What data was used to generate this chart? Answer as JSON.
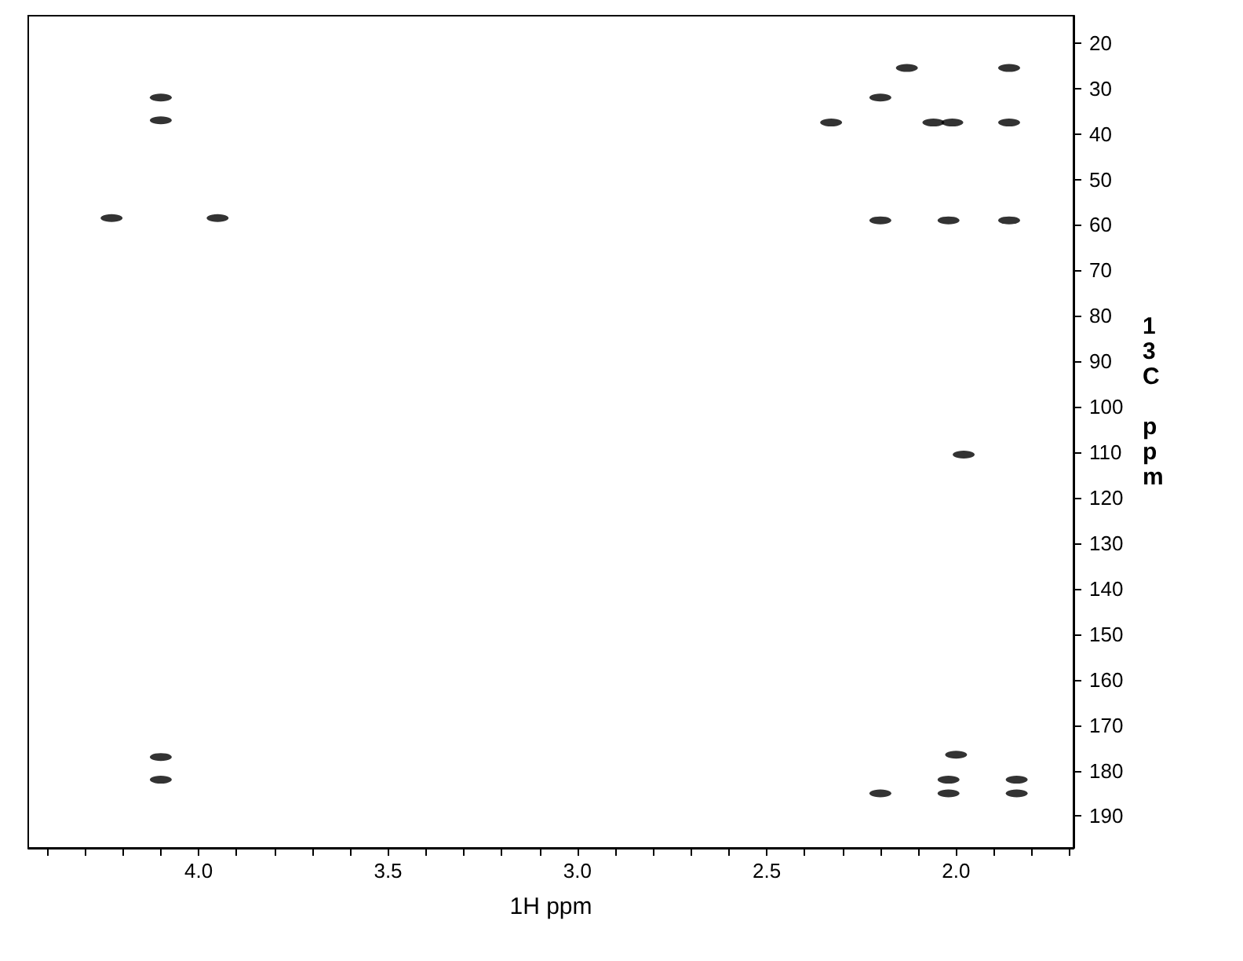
{
  "chart_data": {
    "type": "scatter",
    "xlabel": "1H ppm",
    "ylabel": "13C ppm",
    "series": [
      {
        "color": "#000000",
        "x": [
          4.1,
          4.1,
          4.1,
          4.1,
          4.23,
          3.95,
          2.33,
          2.2,
          2.2,
          2.2,
          2.13,
          2.06,
          2.01,
          2.02,
          1.86,
          1.86,
          1.86,
          1.98,
          2.0,
          2.02,
          2.02,
          1.84,
          1.84
        ],
        "values": [
          32,
          37,
          177,
          182,
          58.5,
          58.5,
          37.5,
          32,
          59,
          185,
          25.5,
          37.5,
          37.5,
          59,
          25.5,
          37.5,
          59,
          110.5,
          176.5,
          182,
          185,
          182,
          185
        ]
      }
    ],
    "xlim": [
      4.45,
      1.69
    ],
    "ylim": [
      197,
      14
    ],
    "xticks": [
      {
        "value": 4.4,
        "label": null
      },
      {
        "value": 4.3,
        "label": null
      },
      {
        "value": 4.2,
        "label": null
      },
      {
        "value": 4.1,
        "label": null
      },
      {
        "value": 4.0,
        "label": "4.0"
      },
      {
        "value": 3.9,
        "label": null
      },
      {
        "value": 3.8,
        "label": null
      },
      {
        "value": 3.7,
        "label": null
      },
      {
        "value": 3.6,
        "label": null
      },
      {
        "value": 3.5,
        "label": "3.5"
      },
      {
        "value": 3.4,
        "label": null
      },
      {
        "value": 3.3,
        "label": null
      },
      {
        "value": 3.2,
        "label": null
      },
      {
        "value": 3.1,
        "label": null
      },
      {
        "value": 3.0,
        "label": "3.0"
      },
      {
        "value": 2.9,
        "label": null
      },
      {
        "value": 2.8,
        "label": null
      },
      {
        "value": 2.7,
        "label": null
      },
      {
        "value": 2.6,
        "label": null
      },
      {
        "value": 2.5,
        "label": "2.5"
      },
      {
        "value": 2.4,
        "label": null
      },
      {
        "value": 2.3,
        "label": null
      },
      {
        "value": 2.2,
        "label": null
      },
      {
        "value": 2.1,
        "label": null
      },
      {
        "value": 2.0,
        "label": "2.0"
      },
      {
        "value": 1.9,
        "label": null
      },
      {
        "value": 1.8,
        "label": null
      },
      {
        "value": 1.7,
        "label": null
      }
    ],
    "yticks": [
      20,
      30,
      40,
      50,
      60,
      70,
      80,
      90,
      100,
      110,
      120,
      130,
      140,
      150,
      160,
      170,
      180,
      190
    ],
    "grid": false,
    "marker": "circle"
  }
}
